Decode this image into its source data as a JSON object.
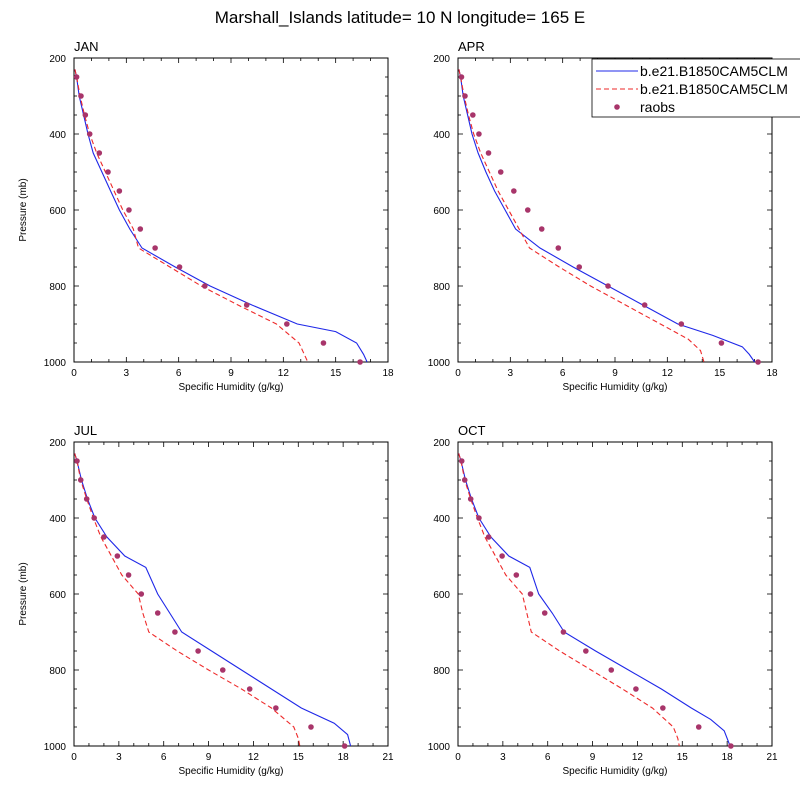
{
  "title": "Marshall_Islands  latitude= 10 N longitude= 165 E",
  "colors": {
    "model1": "#1f28e8",
    "model2": "#ee2a2a",
    "raobs": "#a8356a",
    "axis": "#000000"
  },
  "legend": {
    "placement": "top-right of APR panel",
    "entries": [
      "b.e21.B1850CAM5CLM",
      "b.e21.B1850CAM5CLM",
      "raobs"
    ]
  },
  "chart_data": [
    {
      "type": "line",
      "title": "JAN",
      "xlabel": "Specific Humidity (g/kg)",
      "ylabel": "Pressure (mb)",
      "xlim": [
        0,
        18
      ],
      "xticks": [
        0,
        3,
        6,
        9,
        12,
        15,
        18
      ],
      "ylim": [
        1000,
        200
      ],
      "yticks": [
        200,
        400,
        600,
        800,
        1000
      ],
      "series": [
        {
          "name": "b.e21.B1850CAM5CLM",
          "style": "solid",
          "points": [
            [
              0.05,
              230
            ],
            [
              0.15,
              250
            ],
            [
              0.3,
              300
            ],
            [
              0.55,
              350
            ],
            [
              0.8,
              400
            ],
            [
              1.1,
              450
            ],
            [
              1.6,
              500
            ],
            [
              2.1,
              550
            ],
            [
              2.6,
              600
            ],
            [
              3.2,
              650
            ],
            [
              3.9,
              700
            ],
            [
              5.8,
              750
            ],
            [
              7.8,
              800
            ],
            [
              10.2,
              850
            ],
            [
              12.8,
              900
            ],
            [
              15,
              920
            ],
            [
              16.2,
              950
            ],
            [
              16.6,
              980
            ],
            [
              16.8,
              1000
            ]
          ]
        },
        {
          "name": "b.e21.B1850CAM5CLM",
          "style": "dashed",
          "points": [
            [
              0.05,
              230
            ],
            [
              0.15,
              250
            ],
            [
              0.35,
              300
            ],
            [
              0.6,
              350
            ],
            [
              0.9,
              400
            ],
            [
              1.3,
              450
            ],
            [
              1.8,
              500
            ],
            [
              2.3,
              550
            ],
            [
              2.8,
              600
            ],
            [
              3.4,
              650
            ],
            [
              3.7,
              700
            ],
            [
              5.5,
              750
            ],
            [
              7.3,
              800
            ],
            [
              9.4,
              850
            ],
            [
              11.6,
              900
            ],
            [
              12.9,
              950
            ],
            [
              13.2,
              980
            ],
            [
              13.4,
              1000
            ]
          ]
        },
        {
          "name": "raobs",
          "style": "marker",
          "points": [
            [
              0.15,
              250
            ],
            [
              0.4,
              300
            ],
            [
              0.65,
              350
            ],
            [
              0.9,
              400
            ],
            [
              1.45,
              450
            ],
            [
              1.95,
              500
            ],
            [
              2.6,
              550
            ],
            [
              3.15,
              600
            ],
            [
              3.8,
              650
            ],
            [
              4.65,
              700
            ],
            [
              6.05,
              750
            ],
            [
              7.5,
              800
            ],
            [
              9.9,
              850
            ],
            [
              12.2,
              900
            ],
            [
              14.3,
              950
            ],
            [
              16.4,
              1000
            ]
          ]
        }
      ]
    },
    {
      "type": "line",
      "title": "APR",
      "xlabel": "Specific Humidity (g/kg)",
      "ylabel": "",
      "xlim": [
        0,
        18
      ],
      "xticks": [
        0,
        3,
        6,
        9,
        12,
        15,
        18
      ],
      "ylim": [
        1000,
        200
      ],
      "yticks": [
        200,
        400,
        600,
        800,
        1000
      ],
      "series": [
        {
          "name": "b.e21.B1850CAM5CLM",
          "style": "solid",
          "points": [
            [
              0.05,
              230
            ],
            [
              0.15,
              250
            ],
            [
              0.3,
              300
            ],
            [
              0.55,
              350
            ],
            [
              0.8,
              400
            ],
            [
              1.15,
              450
            ],
            [
              1.6,
              500
            ],
            [
              2.1,
              550
            ],
            [
              2.7,
              600
            ],
            [
              3.3,
              650
            ],
            [
              4.7,
              700
            ],
            [
              6.6,
              750
            ],
            [
              8.6,
              800
            ],
            [
              10.6,
              850
            ],
            [
              12.6,
              900
            ],
            [
              14.6,
              930
            ],
            [
              16.3,
              960
            ],
            [
              16.7,
              980
            ],
            [
              17.0,
              1000
            ]
          ]
        },
        {
          "name": "b.e21.B1850CAM5CLM",
          "style": "dashed",
          "points": [
            [
              0.05,
              230
            ],
            [
              0.15,
              250
            ],
            [
              0.35,
              300
            ],
            [
              0.6,
              350
            ],
            [
              0.9,
              400
            ],
            [
              1.3,
              450
            ],
            [
              1.8,
              500
            ],
            [
              2.3,
              550
            ],
            [
              2.9,
              600
            ],
            [
              3.5,
              650
            ],
            [
              4.1,
              700
            ],
            [
              5.8,
              750
            ],
            [
              7.6,
              800
            ],
            [
              9.6,
              850
            ],
            [
              11.6,
              900
            ],
            [
              13.2,
              940
            ],
            [
              13.9,
              970
            ],
            [
              14.1,
              1000
            ]
          ]
        },
        {
          "name": "raobs",
          "style": "marker",
          "points": [
            [
              0.2,
              250
            ],
            [
              0.4,
              300
            ],
            [
              0.85,
              350
            ],
            [
              1.2,
              400
            ],
            [
              1.75,
              450
            ],
            [
              2.45,
              500
            ],
            [
              3.2,
              550
            ],
            [
              4.0,
              600
            ],
            [
              4.8,
              650
            ],
            [
              5.75,
              700
            ],
            [
              6.95,
              750
            ],
            [
              8.6,
              800
            ],
            [
              10.7,
              850
            ],
            [
              12.8,
              900
            ],
            [
              15.1,
              950
            ],
            [
              17.2,
              1000
            ]
          ]
        }
      ]
    },
    {
      "type": "line",
      "title": "JUL",
      "xlabel": "Specific Humidity (g/kg)",
      "ylabel": "Pressure (mb)",
      "xlim": [
        0,
        21
      ],
      "xticks": [
        0,
        3,
        6,
        9,
        12,
        15,
        18,
        21
      ],
      "ylim": [
        1000,
        200
      ],
      "yticks": [
        200,
        400,
        600,
        800,
        1000
      ],
      "series": [
        {
          "name": "b.e21.B1850CAM5CLM",
          "style": "solid",
          "points": [
            [
              0.05,
              230
            ],
            [
              0.2,
              250
            ],
            [
              0.5,
              300
            ],
            [
              0.9,
              350
            ],
            [
              1.4,
              400
            ],
            [
              2.2,
              450
            ],
            [
              3.4,
              500
            ],
            [
              4.8,
              530
            ],
            [
              5.6,
              600
            ],
            [
              6.4,
              650
            ],
            [
              7.2,
              700
            ],
            [
              9.2,
              750
            ],
            [
              11.2,
              800
            ],
            [
              13.2,
              850
            ],
            [
              15.2,
              900
            ],
            [
              17.4,
              940
            ],
            [
              18.3,
              970
            ],
            [
              18.5,
              1000
            ]
          ]
        },
        {
          "name": "b.e21.B1850CAM5CLM",
          "style": "dashed",
          "points": [
            [
              0.05,
              230
            ],
            [
              0.2,
              250
            ],
            [
              0.45,
              300
            ],
            [
              0.85,
              350
            ],
            [
              1.3,
              400
            ],
            [
              1.8,
              450
            ],
            [
              2.5,
              500
            ],
            [
              3.2,
              550
            ],
            [
              4.3,
              600
            ],
            [
              4.6,
              650
            ],
            [
              5.0,
              700
            ],
            [
              6.9,
              750
            ],
            [
              9.0,
              800
            ],
            [
              11.2,
              850
            ],
            [
              13.2,
              900
            ],
            [
              14.7,
              950
            ],
            [
              15.0,
              980
            ],
            [
              15.1,
              1000
            ]
          ]
        },
        {
          "name": "raobs",
          "style": "marker",
          "points": [
            [
              0.2,
              250
            ],
            [
              0.45,
              300
            ],
            [
              0.85,
              350
            ],
            [
              1.35,
              400
            ],
            [
              2.0,
              450
            ],
            [
              2.9,
              500
            ],
            [
              3.65,
              550
            ],
            [
              4.5,
              600
            ],
            [
              5.6,
              650
            ],
            [
              6.75,
              700
            ],
            [
              8.3,
              750
            ],
            [
              9.95,
              800
            ],
            [
              11.75,
              850
            ],
            [
              13.5,
              900
            ],
            [
              15.85,
              950
            ],
            [
              18.1,
              1000
            ]
          ]
        }
      ]
    },
    {
      "type": "line",
      "title": "OCT",
      "xlabel": "Specific Humidity (g/kg)",
      "ylabel": "",
      "xlim": [
        0,
        21
      ],
      "xticks": [
        0,
        3,
        6,
        9,
        12,
        15,
        18,
        21
      ],
      "ylim": [
        1000,
        200
      ],
      "yticks": [
        200,
        400,
        600,
        800,
        1000
      ],
      "series": [
        {
          "name": "b.e21.B1850CAM5CLM",
          "style": "solid",
          "points": [
            [
              0.05,
              230
            ],
            [
              0.2,
              250
            ],
            [
              0.5,
              300
            ],
            [
              0.9,
              350
            ],
            [
              1.4,
              400
            ],
            [
              2.2,
              450
            ],
            [
              3.4,
              500
            ],
            [
              4.8,
              530
            ],
            [
              5.4,
              600
            ],
            [
              6.3,
              650
            ],
            [
              7.1,
              700
            ],
            [
              9.2,
              750
            ],
            [
              11.4,
              800
            ],
            [
              13.6,
              850
            ],
            [
              15.6,
              900
            ],
            [
              16.9,
              930
            ],
            [
              17.8,
              960
            ],
            [
              18.2,
              1000
            ]
          ]
        },
        {
          "name": "b.e21.B1850CAM5CLM",
          "style": "dashed",
          "points": [
            [
              0.05,
              230
            ],
            [
              0.2,
              250
            ],
            [
              0.45,
              300
            ],
            [
              0.85,
              350
            ],
            [
              1.3,
              400
            ],
            [
              1.8,
              450
            ],
            [
              2.5,
              500
            ],
            [
              3.2,
              550
            ],
            [
              4.3,
              600
            ],
            [
              4.6,
              650
            ],
            [
              4.9,
              700
            ],
            [
              6.8,
              750
            ],
            [
              8.9,
              800
            ],
            [
              11.0,
              850
            ],
            [
              13.0,
              900
            ],
            [
              14.4,
              950
            ],
            [
              14.7,
              980
            ],
            [
              14.8,
              1000
            ]
          ]
        },
        {
          "name": "raobs",
          "style": "marker",
          "points": [
            [
              0.25,
              250
            ],
            [
              0.45,
              300
            ],
            [
              0.85,
              350
            ],
            [
              1.4,
              400
            ],
            [
              2.05,
              450
            ],
            [
              2.95,
              500
            ],
            [
              3.9,
              550
            ],
            [
              4.85,
              600
            ],
            [
              5.8,
              650
            ],
            [
              7.05,
              700
            ],
            [
              8.55,
              750
            ],
            [
              10.25,
              800
            ],
            [
              11.9,
              850
            ],
            [
              13.7,
              900
            ],
            [
              16.1,
              950
            ],
            [
              18.25,
              1000
            ]
          ]
        }
      ]
    }
  ]
}
